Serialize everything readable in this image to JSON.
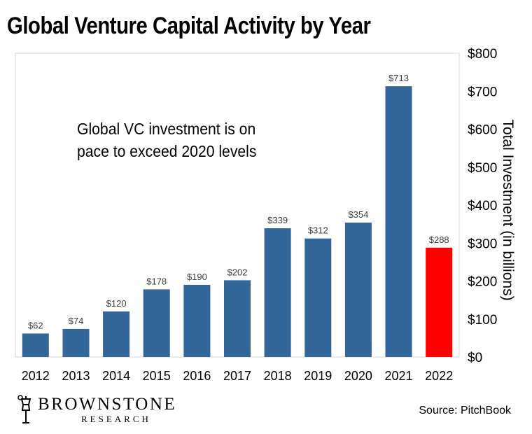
{
  "title": "Global Venture Capital Activity by Year",
  "annotation": "Global VC investment is on pace to exceed 2020 levels",
  "logo": {
    "name": "BROWNSTONE",
    "sub": "RESEARCH"
  },
  "source": "Source: PitchBook",
  "colors": {
    "bar": "#336699",
    "highlight": "#ff0000",
    "grid": "#d9d9d9"
  },
  "chart_data": {
    "type": "bar",
    "title": "Global Venture Capital Activity by Year",
    "categories": [
      "2012",
      "2013",
      "2014",
      "2015",
      "2016",
      "2017",
      "2018",
      "2019",
      "2020",
      "2021",
      "2022"
    ],
    "values": [
      62,
      74,
      120,
      178,
      190,
      202,
      339,
      312,
      354,
      713,
      288
    ],
    "value_labels": [
      "$62",
      "$74",
      "$120",
      "$178",
      "$190",
      "$202",
      "$339",
      "$312",
      "$354",
      "$713",
      "$288"
    ],
    "highlight_index": 10,
    "ylabel": "Total Investment (in billions)",
    "ylim": [
      0,
      800
    ],
    "yticks": [
      0,
      100,
      200,
      300,
      400,
      500,
      600,
      700,
      800
    ],
    "ytick_labels": [
      "$0",
      "$100",
      "$200",
      "$300",
      "$400",
      "$500",
      "$600",
      "$700",
      "$800"
    ],
    "y_axis_side": "right",
    "grid": false
  }
}
